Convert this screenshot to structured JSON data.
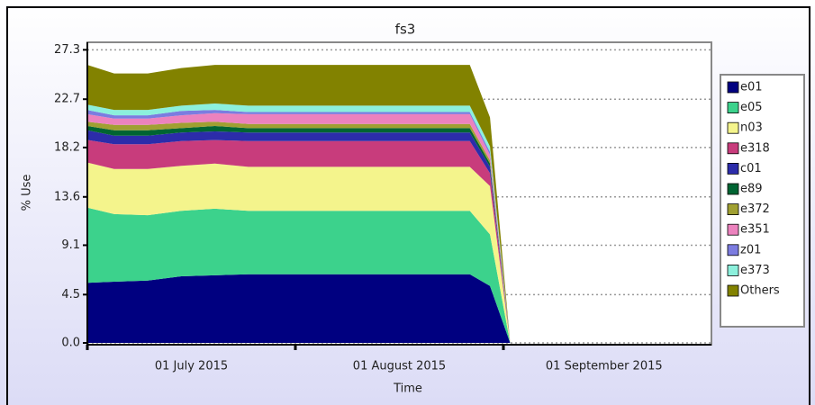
{
  "chart_data": {
    "type": "stacked-area",
    "title": "fs3",
    "x_label": "Time",
    "y_label": "% Use",
    "x": [
      "2015-07-01",
      "2015-07-05",
      "2015-07-10",
      "2015-07-15",
      "2015-07-20",
      "2015-07-25",
      "2015-08-27",
      "2015-08-30",
      "2015-09-02"
    ],
    "xlim": [
      "2015-07-01",
      "2015-10-02"
    ],
    "xticks": [
      {
        "value": "2015-07-01",
        "label": "01 July 2015"
      },
      {
        "value": "2015-08-01",
        "label": "01 August 2015"
      },
      {
        "value": "2015-09-01",
        "label": "01 September 2015"
      }
    ],
    "ylim": [
      0,
      28
    ],
    "yticks": [
      {
        "value": 0,
        "label": "0.0"
      },
      4.5,
      9.1,
      13.6,
      18.2,
      22.7,
      27.3
    ],
    "grid": true,
    "legend": "right",
    "series": [
      {
        "name": "e01",
        "color": "#000080",
        "values": [
          5.6,
          5.7,
          5.8,
          6.2,
          6.3,
          6.4,
          6.4,
          5.3,
          0
        ]
      },
      {
        "name": "e05",
        "color": "#3cd28c",
        "values": [
          7.0,
          6.3,
          6.1,
          6.1,
          6.2,
          5.9,
          5.9,
          4.8,
          0
        ]
      },
      {
        "name": "n03",
        "color": "#f4f48c",
        "values": [
          4.2,
          4.2,
          4.3,
          4.2,
          4.2,
          4.1,
          4.1,
          4.5,
          0
        ]
      },
      {
        "name": "e318",
        "color": "#c83c7c",
        "values": [
          2.1,
          2.3,
          2.3,
          2.3,
          2.2,
          2.4,
          2.4,
          1.2,
          0
        ]
      },
      {
        "name": "c01",
        "color": "#2c2caa",
        "values": [
          0.9,
          0.8,
          0.8,
          0.8,
          0.8,
          0.8,
          0.8,
          0.6,
          0
        ]
      },
      {
        "name": "e89",
        "color": "#006432",
        "values": [
          0.4,
          0.5,
          0.5,
          0.4,
          0.5,
          0.4,
          0.4,
          0.3,
          0
        ]
      },
      {
        "name": "e372",
        "color": "#a0a032",
        "values": [
          0.4,
          0.5,
          0.5,
          0.5,
          0.4,
          0.4,
          0.4,
          0.3,
          0
        ]
      },
      {
        "name": "e351",
        "color": "#ec82be",
        "values": [
          0.7,
          0.6,
          0.6,
          0.7,
          0.8,
          0.9,
          0.9,
          0.5,
          0
        ]
      },
      {
        "name": "z01",
        "color": "#7c7ce0",
        "values": [
          0.4,
          0.3,
          0.3,
          0.4,
          0.3,
          0.2,
          0.2,
          0.3,
          0
        ]
      },
      {
        "name": "e373",
        "color": "#8cf0dc",
        "values": [
          0.5,
          0.5,
          0.5,
          0.5,
          0.6,
          0.6,
          0.6,
          0.5,
          0
        ]
      },
      {
        "name": "Others",
        "color": "#828200",
        "values": [
          3.7,
          3.4,
          3.4,
          3.5,
          3.6,
          3.8,
          3.8,
          2.7,
          0
        ]
      }
    ]
  }
}
